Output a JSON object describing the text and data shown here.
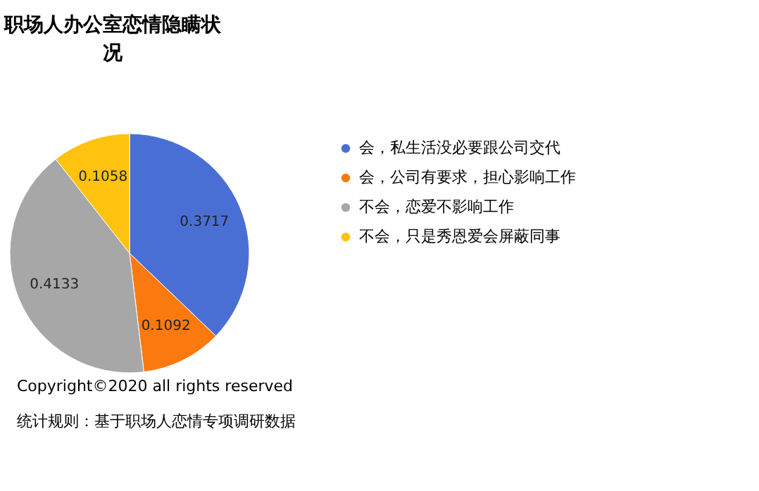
{
  "chart_data": {
    "type": "pie",
    "title": "职场人办公室恋情隐瞒状况",
    "categories": [
      "会，私生活没必要跟公司交代",
      "会，公司有要求，担心影响工作",
      "不会，恋爱不影响工作",
      "不会，只是秀恩爱会屏蔽同事"
    ],
    "values": [
      0.3717,
      0.1092,
      0.4133,
      0.1058
    ],
    "colors": [
      "#4a6fd4",
      "#fb7a10",
      "#a7a7a7",
      "#ffc20e"
    ],
    "data_labels": true,
    "legend": "right",
    "annotations": [
      "Copyright©2020 all rights reserved",
      "统计规则：基于职场人恋情专项调研数据"
    ]
  }
}
